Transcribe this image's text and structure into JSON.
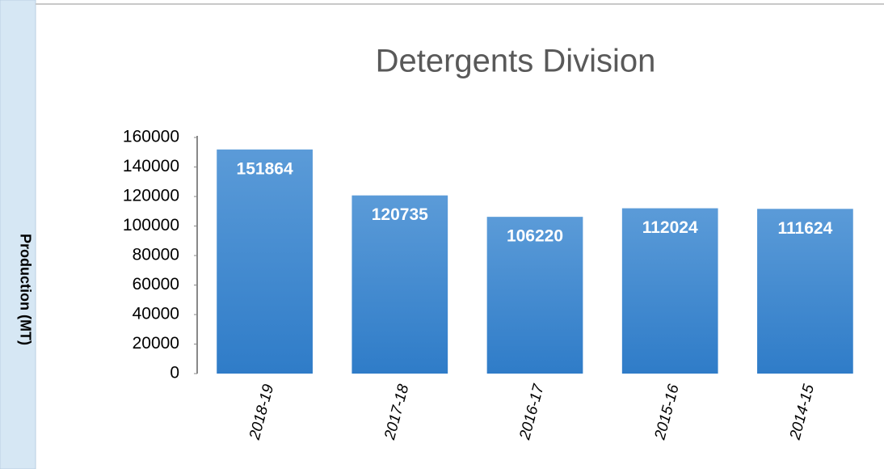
{
  "chart_data": {
    "type": "bar",
    "title": "Detergents Division",
    "y_label": "Production (MT)",
    "categories": [
      "2018-19",
      "2017-18",
      "2016-17",
      "2015-16",
      "2014-15"
    ],
    "values": [
      151864,
      120735,
      106220,
      112024,
      111624
    ],
    "color": "#4a8fd4",
    "ylim": [
      0,
      160000
    ],
    "yticks": [
      0,
      20000,
      40000,
      60000,
      80000,
      100000,
      120000,
      140000,
      160000
    ],
    "grid": false
  }
}
